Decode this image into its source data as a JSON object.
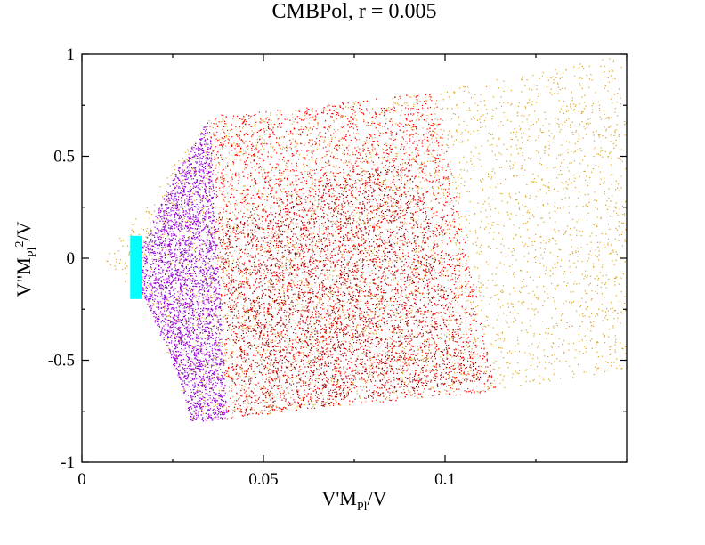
{
  "chart_data": {
    "type": "scatter",
    "title": "CMBPol, r = 0.005",
    "xlabel": {
      "main": "V'M",
      "sub": "Pl",
      "tail": "/V"
    },
    "ylabel": {
      "main": "V\"M",
      "sub": "Pl",
      "sup": "2",
      "tail": "/V"
    },
    "xlim": [
      0,
      0.15
    ],
    "ylim": [
      -1,
      1
    ],
    "xticks": [
      0,
      0.05,
      0.1
    ],
    "xtick_labels": [
      "0",
      "0.05",
      "0.1"
    ],
    "yticks": [
      -1,
      -0.5,
      0,
      0.5,
      1
    ],
    "ytick_labels": [
      "-1",
      "-0.5",
      "0",
      "0.5",
      "1"
    ],
    "grid": false,
    "legend": "none",
    "series": [
      {
        "color": "#DAA520",
        "style": "dots",
        "region": [
          [
            0.006,
            0.0
          ],
          [
            0.035,
            0.69
          ],
          [
            0.06,
            0.73
          ],
          [
            0.097,
            0.82
          ],
          [
            0.15,
            1.0
          ],
          [
            0.15,
            -0.54
          ],
          [
            0.115,
            -0.65
          ],
          [
            0.06,
            -0.74
          ],
          [
            0.04,
            -0.79
          ],
          [
            0.03,
            -0.8
          ],
          [
            0.02,
            -0.3
          ]
        ]
      },
      {
        "color": "#FF0000",
        "style": "dots",
        "region": [
          [
            0.035,
            0.7
          ],
          [
            0.06,
            0.74
          ],
          [
            0.097,
            0.82
          ],
          [
            0.114,
            -0.65
          ],
          [
            0.06,
            -0.74
          ],
          [
            0.04,
            -0.79
          ]
        ]
      },
      {
        "color": "#8B0000",
        "style": "dots",
        "region": [
          [
            0.037,
            0.2
          ],
          [
            0.09,
            0.5
          ],
          [
            0.11,
            -0.6
          ],
          [
            0.06,
            -0.74
          ],
          [
            0.042,
            -0.78
          ]
        ]
      },
      {
        "color": "#9400D3",
        "style": "dots",
        "region": [
          [
            0.016,
            0.05
          ],
          [
            0.025,
            0.4
          ],
          [
            0.035,
            0.69
          ],
          [
            0.04,
            -0.79
          ],
          [
            0.03,
            -0.8
          ],
          [
            0.027,
            -0.6
          ],
          [
            0.016,
            -0.15
          ]
        ]
      },
      {
        "color": "#00FFFF",
        "style": "band",
        "x": [
          0.0133,
          0.0165
        ],
        "y": [
          -0.2,
          0.11
        ]
      }
    ]
  }
}
